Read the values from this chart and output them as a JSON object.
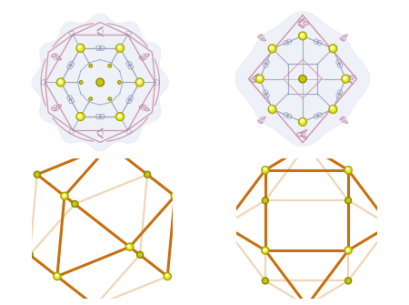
{
  "background": "#ffffff",
  "node_color_bright": "#e8e820",
  "node_color_dim": "#c8c810",
  "node_edge_bright": "#a8a800",
  "node_edge_dim": "#888800",
  "edge_front": "#c87010",
  "edge_back": "#e8c090",
  "blue_line": "#9098b8",
  "pink_line": "#c888a0",
  "bg_blue": "#dde4f2",
  "figure_size": [
    4.5,
    3.35
  ],
  "dpi": 100
}
